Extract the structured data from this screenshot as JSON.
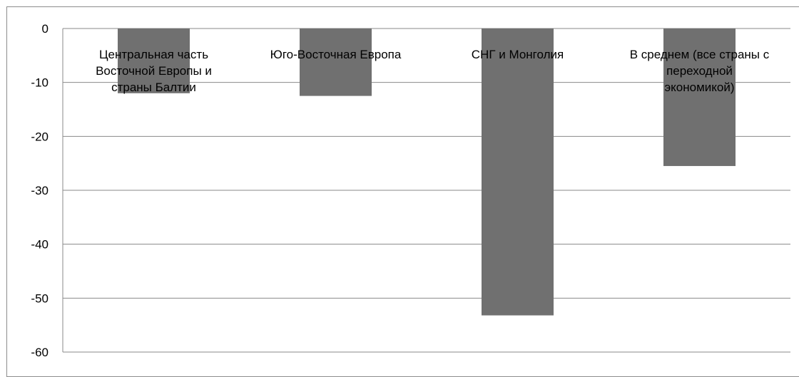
{
  "chart_data": {
    "type": "bar",
    "categories": [
      "Центральная часть Восточной Европы и страны Балтии",
      "Юго-Восточная Европа",
      "СНГ и Монголия",
      "В среднем (все страны с переходной экономикой)"
    ],
    "category_label_lines": [
      [
        "Центральная часть",
        "Восточной Европы и",
        "страны Балтии"
      ],
      [
        "Юго-Восточная Европа"
      ],
      [
        "СНГ и Монголия"
      ],
      [
        "В среднем (все страны с",
        "переходной",
        "экономикой)"
      ]
    ],
    "values": [
      -12,
      -12.5,
      -53.2,
      -25.5
    ],
    "ylim": [
      -60,
      0
    ],
    "yticks": [
      0,
      -10,
      -20,
      -30,
      -40,
      -50,
      -60
    ],
    "ytick_labels": [
      "0",
      "-10",
      "-20",
      "-30",
      "-40",
      "-50",
      "-60"
    ],
    "title": "",
    "xlabel": "",
    "ylabel": "",
    "grid": true,
    "legend": "none",
    "bar_color": "#707070"
  }
}
